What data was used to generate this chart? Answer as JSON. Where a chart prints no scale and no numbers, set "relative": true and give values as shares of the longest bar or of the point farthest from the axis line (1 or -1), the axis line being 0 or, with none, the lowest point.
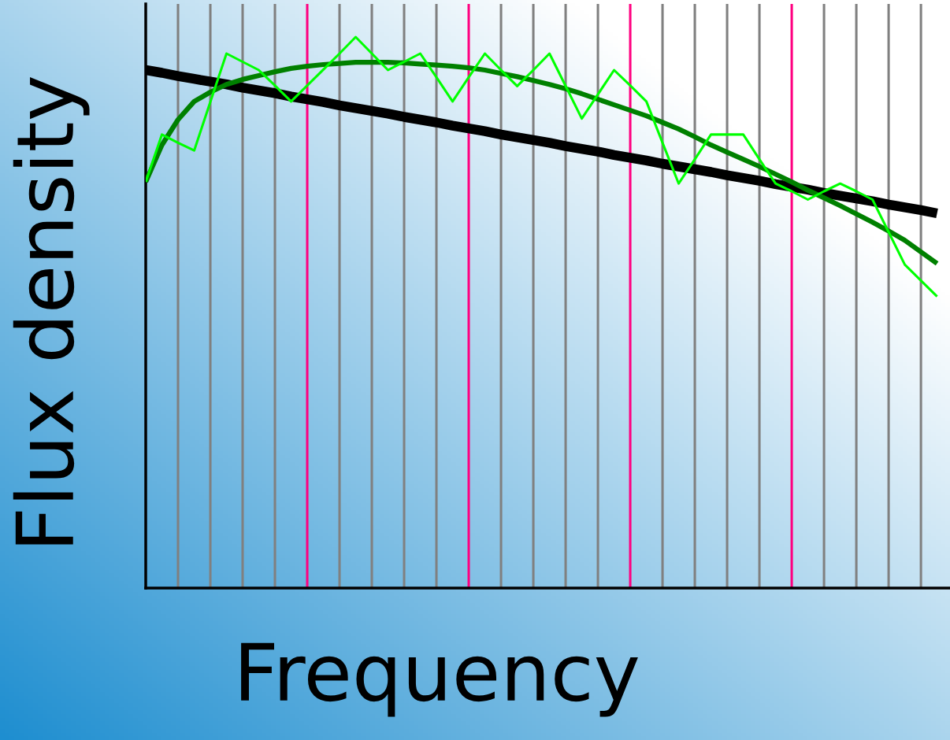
{
  "chart_data": {
    "type": "line",
    "relative": true,
    "xlabel": "Frequency",
    "ylabel": "Flux density",
    "legend": false,
    "marker": "none",
    "line_style": "solid",
    "grid": "x",
    "categories": [
      null,
      null,
      null,
      null,
      null,
      null,
      null,
      null,
      null,
      null,
      null,
      null,
      null,
      null,
      null,
      null,
      null,
      null,
      null,
      null,
      null,
      null,
      null,
      null,
      null,
      null,
      null,
      null,
      null,
      null,
      null,
      null,
      null,
      null,
      null,
      null,
      null,
      null,
      null,
      null,
      null,
      null,
      null,
      null,
      null,
      null,
      null,
      null,
      null,
      null
    ],
    "series": [
      {
        "color": "#000000",
        "values": [
          0.94,
          0.935,
          0.929,
          0.924,
          0.919,
          0.914,
          0.908,
          0.903,
          0.898,
          0.892,
          0.887,
          0.882,
          0.876,
          0.871,
          0.866,
          0.861,
          0.855,
          0.85,
          0.845,
          0.839,
          0.834,
          0.829,
          0.823,
          0.818,
          0.813,
          0.808,
          0.802,
          0.797,
          0.792,
          0.786,
          0.781,
          0.776,
          0.77,
          0.765,
          0.76,
          0.755,
          0.749,
          0.744,
          0.739,
          0.733,
          0.728,
          0.723,
          0.717,
          0.712,
          0.707,
          0.702,
          0.696,
          0.691,
          0.686,
          0.68
        ]
      },
      {
        "color": "#008000",
        "values": [
          0.737,
          0.804,
          0.85,
          0.883,
          0.9,
          0.914,
          0.923,
          0.93,
          0.937,
          0.943,
          0.947,
          0.95,
          0.952,
          0.954,
          0.954,
          0.954,
          0.953,
          0.951,
          0.949,
          0.947,
          0.944,
          0.94,
          0.934,
          0.928,
          0.921,
          0.914,
          0.906,
          0.897,
          0.887,
          0.877,
          0.867,
          0.857,
          0.845,
          0.833,
          0.819,
          0.804,
          0.791,
          0.778,
          0.765,
          0.751,
          0.737,
          0.722,
          0.708,
          0.694,
          0.679,
          0.664,
          0.648,
          0.631,
          0.61,
          0.589
        ]
      },
      {
        "color": "#00ff00",
        "values": [
          0.737,
          0.823,
          0.808,
          0.794,
          0.882,
          0.97,
          0.955,
          0.94,
          0.912,
          0.883,
          0.912,
          0.941,
          0.97,
          1,
          0.97,
          0.94,
          0.955,
          0.97,
          0.927,
          0.883,
          0.927,
          0.97,
          0.94,
          0.911,
          0.94,
          0.97,
          0.911,
          0.852,
          0.896,
          0.94,
          0.912,
          0.883,
          0.808,
          0.734,
          0.778,
          0.823,
          0.823,
          0.823,
          0.778,
          0.734,
          0.72,
          0.705,
          0.72,
          0.734,
          0.72,
          0.705,
          0.646,
          0.587,
          0.558,
          0.529
        ]
      }
    ]
  }
}
